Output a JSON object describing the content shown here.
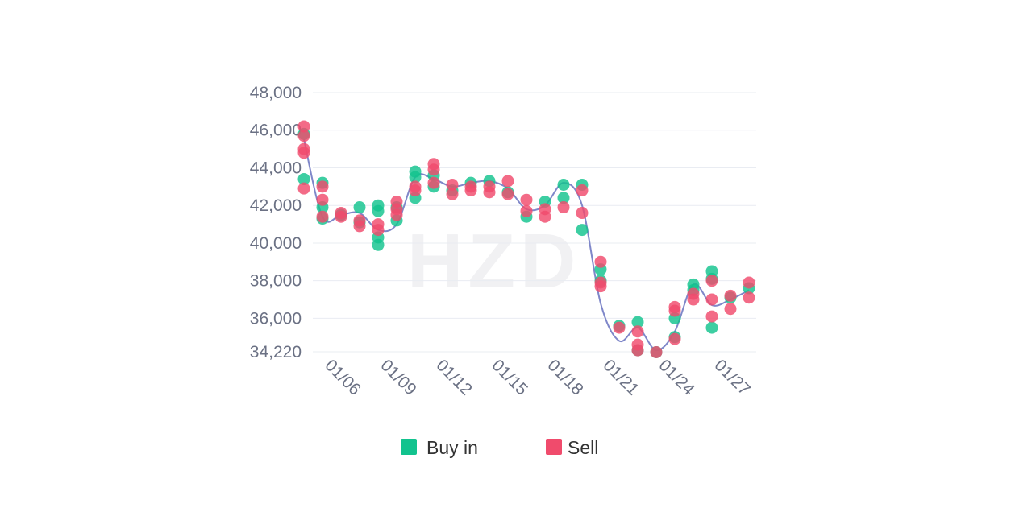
{
  "watermark": "HZD",
  "chart_data": {
    "type": "scatter",
    "y_ticks": [
      "48,000",
      "46,000",
      "44,000",
      "42,000",
      "40,000",
      "38,000",
      "36,000",
      "34,220"
    ],
    "y_tick_values": [
      48000,
      46000,
      44000,
      42000,
      40000,
      38000,
      36000,
      34220
    ],
    "ylim": [
      34220,
      48000
    ],
    "x_ticks": [
      "01/06",
      "01/09",
      "01/12",
      "01/15",
      "01/18",
      "01/21",
      "01/24",
      "01/27"
    ],
    "x_tick_days": [
      6,
      9,
      12,
      15,
      18,
      21,
      24,
      27
    ],
    "xlim": [
      5,
      28
    ],
    "grid": "horizontal",
    "legend_position": "bottom",
    "colors": {
      "Buy in": "#12c38e",
      "Sell": "#f04b6c",
      "trend": "#7f87c9"
    },
    "series": [
      {
        "name": "Buy in",
        "points": [
          [
            5,
            45800
          ],
          [
            5,
            43400
          ],
          [
            6,
            43200
          ],
          [
            6,
            41900
          ],
          [
            6,
            41300
          ],
          [
            7,
            41500
          ],
          [
            8,
            41900
          ],
          [
            8,
            41100
          ],
          [
            9,
            42000
          ],
          [
            9,
            41700
          ],
          [
            9,
            40300
          ],
          [
            9,
            39900
          ],
          [
            10,
            41200
          ],
          [
            10,
            41900
          ],
          [
            11,
            43800
          ],
          [
            11,
            43500
          ],
          [
            11,
            42400
          ],
          [
            12,
            43600
          ],
          [
            12,
            43000
          ],
          [
            13,
            42800
          ],
          [
            14,
            43200
          ],
          [
            15,
            43300
          ],
          [
            16,
            42700
          ],
          [
            17,
            41400
          ],
          [
            18,
            42200
          ],
          [
            19,
            43100
          ],
          [
            19,
            42400
          ],
          [
            20,
            43100
          ],
          [
            20,
            40700
          ],
          [
            21,
            38600
          ],
          [
            21,
            38000
          ],
          [
            22,
            35600
          ],
          [
            23,
            35800
          ],
          [
            23,
            34300
          ],
          [
            24,
            34200
          ],
          [
            25,
            36000
          ],
          [
            25,
            35000
          ],
          [
            26,
            37800
          ],
          [
            26,
            37500
          ],
          [
            27,
            38500
          ],
          [
            27,
            38100
          ],
          [
            27,
            35500
          ],
          [
            28,
            37100
          ],
          [
            29,
            37600
          ]
        ]
      },
      {
        "name": "Sell",
        "points": [
          [
            5,
            46200
          ],
          [
            5,
            45700
          ],
          [
            5,
            45000
          ],
          [
            5,
            44800
          ],
          [
            5,
            42900
          ],
          [
            6,
            43000
          ],
          [
            6,
            42300
          ],
          [
            6,
            41400
          ],
          [
            7,
            41600
          ],
          [
            7,
            41400
          ],
          [
            8,
            41200
          ],
          [
            8,
            40900
          ],
          [
            9,
            41000
          ],
          [
            9,
            40700
          ],
          [
            10,
            42200
          ],
          [
            10,
            41800
          ],
          [
            10,
            41500
          ],
          [
            11,
            43000
          ],
          [
            11,
            42800
          ],
          [
            12,
            44200
          ],
          [
            12,
            43900
          ],
          [
            12,
            43200
          ],
          [
            13,
            43100
          ],
          [
            13,
            42600
          ],
          [
            14,
            43000
          ],
          [
            14,
            42800
          ],
          [
            15,
            43000
          ],
          [
            15,
            42700
          ],
          [
            16,
            43300
          ],
          [
            16,
            42600
          ],
          [
            17,
            42300
          ],
          [
            17,
            41700
          ],
          [
            18,
            41800
          ],
          [
            18,
            41400
          ],
          [
            19,
            41900
          ],
          [
            20,
            42800
          ],
          [
            20,
            41600
          ],
          [
            21,
            39000
          ],
          [
            21,
            37900
          ],
          [
            21,
            37700
          ],
          [
            22,
            35500
          ],
          [
            23,
            35300
          ],
          [
            23,
            34600
          ],
          [
            23,
            34300
          ],
          [
            24,
            34200
          ],
          [
            25,
            36600
          ],
          [
            25,
            36400
          ],
          [
            25,
            34900
          ],
          [
            26,
            37300
          ],
          [
            26,
            37000
          ],
          [
            27,
            38000
          ],
          [
            27,
            37000
          ],
          [
            27,
            36100
          ],
          [
            28,
            37200
          ],
          [
            28,
            36500
          ],
          [
            29,
            37900
          ],
          [
            29,
            37100
          ]
        ]
      }
    ],
    "trend": [
      [
        5,
        45500
      ],
      [
        6,
        41400
      ],
      [
        7,
        41500
      ],
      [
        8,
        41600
      ],
      [
        9,
        40700
      ],
      [
        10,
        41000
      ],
      [
        11,
        43500
      ],
      [
        12,
        43400
      ],
      [
        13,
        43000
      ],
      [
        14,
        43200
      ],
      [
        15,
        43300
      ],
      [
        16,
        42900
      ],
      [
        17,
        41800
      ],
      [
        18,
        42000
      ],
      [
        19,
        43200
      ],
      [
        20,
        42000
      ],
      [
        21,
        36800
      ],
      [
        22,
        34800
      ],
      [
        23,
        35500
      ],
      [
        24,
        34300
      ],
      [
        25,
        35300
      ],
      [
        26,
        37800
      ],
      [
        27,
        36700
      ],
      [
        28,
        37000
      ],
      [
        29,
        37500
      ]
    ],
    "legend": [
      {
        "label": "Buy in",
        "color": "#12c38e"
      },
      {
        "label": "Sell",
        "color": "#f04b6c"
      }
    ]
  }
}
